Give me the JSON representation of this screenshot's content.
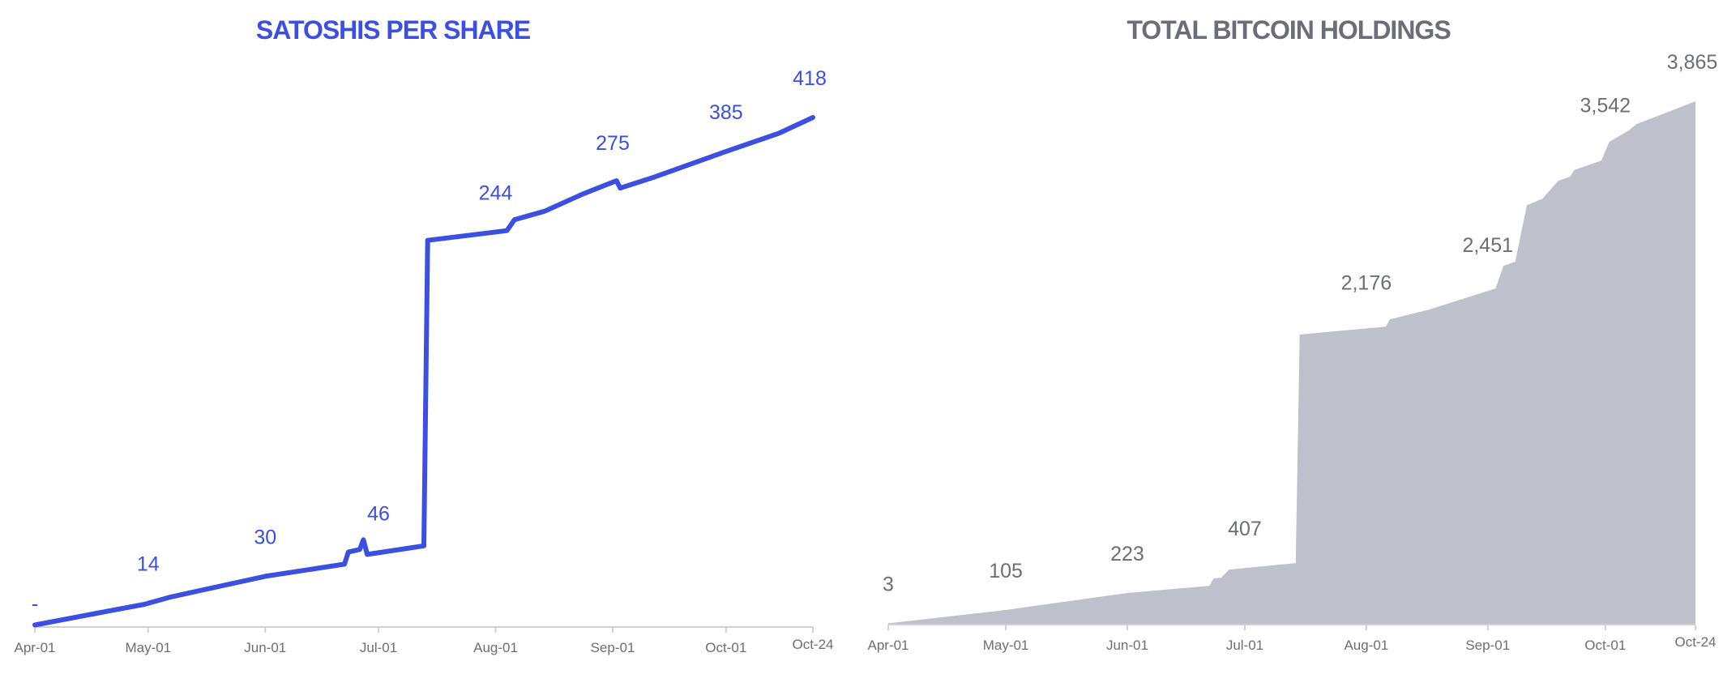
{
  "colors": {
    "blue": "#3b4fe3",
    "gray_fill": "#bec0cb",
    "gray_text": "#6b6e78",
    "axis": "#d0d0d6"
  },
  "chart_data": [
    {
      "type": "line",
      "title": "SATOSHIS PER SHARE",
      "x_ticks": [
        "Apr-01",
        "May-01",
        "Jun-01",
        "Jul-01",
        "Aug-01",
        "Sep-01",
        "Oct-01",
        "Oct-24"
      ],
      "x_tick_days": [
        0,
        30,
        61,
        91,
        122,
        153,
        183,
        206
      ],
      "ylim": [
        0,
        418
      ],
      "grid": false,
      "series": [
        {
          "days": [
            0,
            17,
            29,
            36,
            61,
            82,
            83,
            86,
            87,
            88,
            103,
            104,
            125,
            127,
            135,
            145,
            154,
            155,
            164,
            182,
            197,
            206
          ],
          "values": [
            1,
            11,
            18,
            24,
            41,
            51,
            61,
            63,
            71,
            59,
            66,
            317,
            325,
            334,
            341,
            355,
            366,
            360,
            369,
            389,
            405,
            418
          ]
        }
      ],
      "data_labels": [
        {
          "day": 0,
          "text": "-"
        },
        {
          "day": 30,
          "text": "14"
        },
        {
          "day": 61,
          "text": "30"
        },
        {
          "day": 91,
          "text": "46"
        },
        {
          "day": 122,
          "text": "244"
        },
        {
          "day": 153,
          "text": "275"
        },
        {
          "day": 183,
          "text": "385"
        },
        {
          "day": 206,
          "text": "418"
        }
      ]
    },
    {
      "type": "area",
      "title": "TOTAL BITCOIN HOLDINGS",
      "x_ticks": [
        "Apr-01",
        "May-01",
        "Jun-01",
        "Jul-01",
        "Aug-01",
        "Sep-01",
        "Oct-01",
        "Oct-24"
      ],
      "x_tick_days": [
        0,
        30,
        61,
        91,
        122,
        153,
        183,
        206
      ],
      "ylim": [
        0,
        3865
      ],
      "grid": false,
      "series": [
        {
          "days": [
            0,
            30,
            61,
            82,
            83,
            85,
            87,
            104,
            105,
            127,
            128,
            138,
            155,
            157,
            160,
            163,
            167,
            171,
            174,
            175,
            182,
            184,
            189,
            191,
            197,
            206
          ],
          "values": [
            3,
            102,
            228,
            281,
            335,
            341,
            401,
            449,
            2139,
            2198,
            2252,
            2324,
            2480,
            2648,
            2678,
            3097,
            3145,
            3277,
            3307,
            3355,
            3427,
            3565,
            3649,
            3697,
            3763,
            3865
          ]
        }
      ],
      "data_labels": [
        {
          "day": 0,
          "text": "3"
        },
        {
          "day": 30,
          "text": "105"
        },
        {
          "day": 61,
          "text": "223"
        },
        {
          "day": 91,
          "text": "407"
        },
        {
          "day": 122,
          "text": "2,176"
        },
        {
          "day": 153,
          "text": "2,451"
        },
        {
          "day": 183,
          "text": "3,542"
        },
        {
          "day": 206,
          "text": "3,865"
        }
      ]
    }
  ]
}
